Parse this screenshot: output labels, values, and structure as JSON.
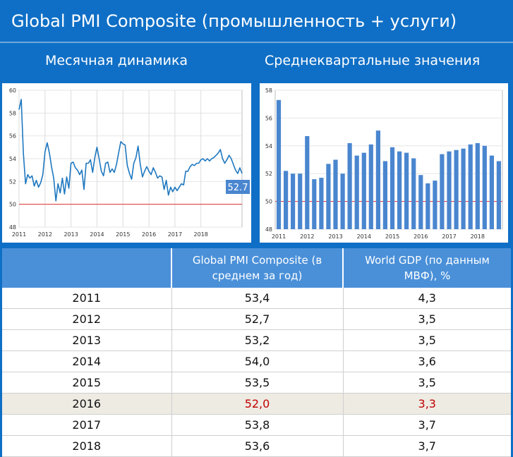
{
  "header": {
    "title": "Global PMI Composite (промышленность + услуги)",
    "left_subtitle": "Месячная динамика",
    "right_subtitle": "Среднеквартальные значения"
  },
  "colors": {
    "background": "#0f6fc6",
    "series": "#1f78c0",
    "bars": "#4a86cf",
    "reference_line": "#e03030",
    "highlight_text": "#c00000"
  },
  "chart_data": [
    {
      "type": "line",
      "ylim": [
        48,
        60
      ],
      "yticks": [
        "48",
        "50",
        "52",
        "54",
        "56",
        "58",
        "60"
      ],
      "xticks": [
        "2011",
        "2012",
        "2013",
        "2014",
        "2015",
        "2016",
        "2017",
        "2018"
      ],
      "reference_value": 50,
      "last_value_label": "52.7",
      "x_start": 2011,
      "values": [
        58.3,
        59.2,
        54.5,
        51.8,
        52.6,
        52.3,
        52.5,
        51.6,
        52.1,
        51.5,
        51.9,
        52.6,
        54.6,
        55.4,
        54.5,
        53.3,
        52.3,
        50.3,
        51.8,
        51.0,
        52.3,
        50.9,
        52.4,
        51.4,
        53.6,
        53.7,
        53.2,
        53.0,
        52.6,
        53.0,
        51.3,
        53.6,
        53.6,
        53.9,
        52.8,
        54.1,
        55.0,
        54.0,
        52.9,
        52.5,
        53.6,
        53.7,
        52.8,
        53.1,
        52.8,
        53.5,
        54.5,
        55.5,
        55.3,
        55.2,
        53.4,
        52.7,
        52.2,
        53.6,
        54.1,
        55.1,
        53.5,
        52.4,
        52.9,
        53.3,
        52.9,
        52.6,
        53.2,
        52.8,
        52.3,
        52.5,
        52.4,
        51.3,
        52.1,
        50.8,
        51.5,
        51.1,
        51.5,
        51.2,
        51.5,
        51.8,
        51.7,
        52.9,
        52.9,
        53.3,
        53.5,
        53.4,
        53.6,
        53.6,
        53.9,
        54.0,
        53.8,
        54.0,
        53.8,
        54.0,
        54.1,
        54.3,
        54.5,
        54.8,
        54.0,
        53.6,
        53.9,
        54.3,
        54.0,
        53.5,
        53.0,
        52.7,
        53.2,
        52.7
      ]
    },
    {
      "type": "bar",
      "ylim": [
        48,
        58
      ],
      "yticks": [
        "48",
        "50",
        "52",
        "54",
        "56",
        "58"
      ],
      "xticks": [
        "2011",
        "2012",
        "2013",
        "2014",
        "2015",
        "2016",
        "2017",
        "2018"
      ],
      "values": [
        57.3,
        52.2,
        52.0,
        52.0,
        54.7,
        51.6,
        51.7,
        52.7,
        53.0,
        52.0,
        54.2,
        53.3,
        53.5,
        54.1,
        55.1,
        52.9,
        53.9,
        53.6,
        53.5,
        53.1,
        51.9,
        51.3,
        51.5,
        53.4,
        53.6,
        53.7,
        53.8,
        54.1,
        54.2,
        54.0,
        53.3,
        52.9
      ]
    }
  ],
  "table": {
    "headers": [
      "",
      "Global PMI Composite (в среднем за год)",
      "World GDP (по данным МВФ), %"
    ],
    "rows": [
      [
        "2011",
        "53,4",
        "4,3"
      ],
      [
        "2012",
        "52,7",
        "3,5"
      ],
      [
        "2013",
        "53,2",
        "3,5"
      ],
      [
        "2014",
        "54,0",
        "3,6"
      ],
      [
        "2015",
        "53,5",
        "3,5"
      ],
      [
        "2016",
        "52,0",
        "3,3"
      ],
      [
        "2017",
        "53,8",
        "3,7"
      ],
      [
        "2018",
        "53,6",
        "3,7"
      ]
    ],
    "highlight_year": "2016"
  }
}
